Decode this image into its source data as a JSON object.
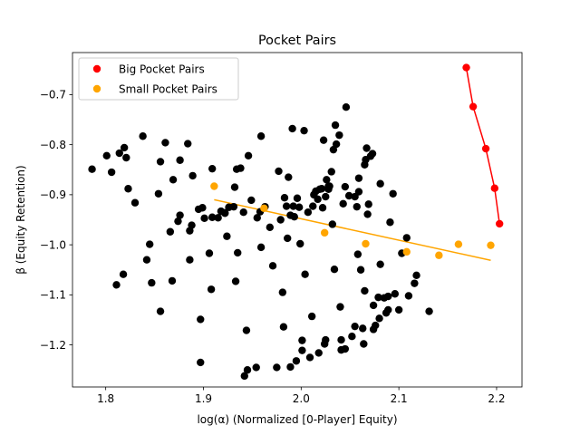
{
  "chart_data": {
    "type": "scatter",
    "title": "Pocket Pairs",
    "xlabel": "log(α) (Normalized [0-Player] Equity)",
    "ylabel": "β (Equity Retention)",
    "xlim": [
      1.766,
      2.226
    ],
    "ylim": [
      -1.284,
      -0.616
    ],
    "xticks": [
      1.8,
      1.9,
      2.0,
      2.1,
      2.2
    ],
    "xtick_labels": [
      "1.8",
      "1.9",
      "2.0",
      "2.1",
      "2.2"
    ],
    "yticks": [
      -1.2,
      -1.1,
      -1.0,
      -0.9,
      -0.8,
      -0.7
    ],
    "ytick_labels": [
      "−1.2",
      "−1.1",
      "−1.0",
      "−0.9",
      "−0.8",
      "−0.7"
    ],
    "grid": false,
    "legend_position": "top-left",
    "series": [
      {
        "name": "",
        "color": "#000000",
        "marker": "circle",
        "points": [
          [
            1.786,
            -0.849
          ],
          [
            1.801,
            -0.822
          ],
          [
            1.806,
            -0.855
          ],
          [
            1.811,
            -1.08
          ],
          [
            1.814,
            -0.817
          ],
          [
            1.818,
            -1.059
          ],
          [
            1.819,
            -0.806
          ],
          [
            1.821,
            -0.826
          ],
          [
            1.823,
            -0.888
          ],
          [
            1.83,
            -0.916
          ],
          [
            1.838,
            -0.783
          ],
          [
            1.842,
            -1.03
          ],
          [
            1.845,
            -0.999
          ],
          [
            1.847,
            -1.076
          ],
          [
            1.854,
            -0.898
          ],
          [
            1.856,
            -0.834
          ],
          [
            1.856,
            -1.133
          ],
          [
            1.861,
            -0.796
          ],
          [
            1.866,
            -0.974
          ],
          [
            1.868,
            -1.072
          ],
          [
            1.869,
            -0.87
          ],
          [
            1.874,
            -0.953
          ],
          [
            1.876,
            -0.941
          ],
          [
            1.876,
            -0.831
          ],
          [
            1.884,
            -0.798
          ],
          [
            1.886,
            -0.972
          ],
          [
            1.886,
            -1.03
          ],
          [
            1.888,
            -0.961
          ],
          [
            1.889,
            -0.862
          ],
          [
            1.895,
            -0.929
          ],
          [
            1.897,
            -1.149
          ],
          [
            1.897,
            -1.235
          ],
          [
            1.899,
            -0.926
          ],
          [
            1.901,
            -0.947
          ],
          [
            1.906,
            -1.017
          ],
          [
            1.908,
            -1.089
          ],
          [
            1.909,
            -0.945
          ],
          [
            1.909,
            -0.848
          ],
          [
            1.915,
            -0.946
          ],
          [
            1.918,
            -0.933
          ],
          [
            1.922,
            -0.937
          ],
          [
            1.922,
            -0.936
          ],
          [
            1.924,
            -0.983
          ],
          [
            1.926,
            -0.925
          ],
          [
            1.931,
            -0.924
          ],
          [
            1.932,
            -0.885
          ],
          [
            1.933,
            -1.073
          ],
          [
            1.934,
            -0.849
          ],
          [
            1.935,
            -1.016
          ],
          [
            1.938,
            -0.847
          ],
          [
            1.941,
            -0.935
          ],
          [
            1.942,
            -1.262
          ],
          [
            1.944,
            -1.171
          ],
          [
            1.945,
            -1.25
          ],
          [
            1.946,
            -0.822
          ],
          [
            1.949,
            -0.911
          ],
          [
            1.954,
            -1.245
          ],
          [
            1.955,
            -0.946
          ],
          [
            1.958,
            -0.934
          ],
          [
            1.959,
            -1.005
          ],
          [
            1.959,
            -0.783
          ],
          [
            1.963,
            -0.924
          ],
          [
            1.968,
            -0.965
          ],
          [
            1.971,
            -1.042
          ],
          [
            1.975,
            -1.245
          ],
          [
            1.977,
            -0.853
          ],
          [
            1.979,
            -0.95
          ],
          [
            1.981,
            -1.095
          ],
          [
            1.982,
            -1.164
          ],
          [
            1.983,
            -0.906
          ],
          [
            1.985,
            -0.923
          ],
          [
            1.986,
            -0.987
          ],
          [
            1.987,
            -0.865
          ],
          [
            1.989,
            -0.941
          ],
          [
            1.989,
            -1.244
          ],
          [
            1.991,
            -0.768
          ],
          [
            1.992,
            -0.923
          ],
          [
            1.993,
            -0.944
          ],
          [
            1.995,
            -1.232
          ],
          [
            1.996,
            -0.907
          ],
          [
            1.998,
            -0.925
          ],
          [
            1.999,
            -0.998
          ],
          [
            2.001,
            -1.191
          ],
          [
            2.001,
            -1.211
          ],
          [
            2.003,
            -0.772
          ],
          [
            2.004,
            -1.059
          ],
          [
            2.007,
            -0.935
          ],
          [
            2.009,
            -1.225
          ],
          [
            2.011,
            -1.143
          ],
          [
            2.012,
            -0.923
          ],
          [
            2.013,
            -0.9
          ],
          [
            2.015,
            -0.893
          ],
          [
            2.017,
            -0.909
          ],
          [
            2.018,
            -1.216
          ],
          [
            2.019,
            -0.889
          ],
          [
            2.021,
            -0.888
          ],
          [
            2.022,
            -0.926
          ],
          [
            2.023,
            -0.791
          ],
          [
            2.024,
            -1.198
          ],
          [
            2.025,
            -0.904
          ],
          [
            2.025,
            -1.19
          ],
          [
            2.026,
            -0.87
          ],
          [
            2.028,
            -0.883
          ],
          [
            2.028,
            -0.889
          ],
          [
            2.029,
            -0.883
          ],
          [
            2.031,
            -0.854
          ],
          [
            2.032,
            -0.959
          ],
          [
            2.033,
            -0.81
          ],
          [
            2.034,
            -1.049
          ],
          [
            2.035,
            -0.761
          ],
          [
            2.036,
            -0.799
          ],
          [
            2.039,
            -0.781
          ],
          [
            2.04,
            -1.124
          ],
          [
            2.041,
            -1.21
          ],
          [
            2.041,
            -1.19
          ],
          [
            2.043,
            -0.918
          ],
          [
            2.045,
            -1.208
          ],
          [
            2.045,
            -0.884
          ],
          [
            2.046,
            -0.725
          ],
          [
            2.049,
            -0.902
          ],
          [
            2.052,
            -1.183
          ],
          [
            2.055,
            -1.163
          ],
          [
            2.055,
            -0.904
          ],
          [
            2.057,
            -0.924
          ],
          [
            2.058,
            -1.019
          ],
          [
            2.059,
            -0.894
          ],
          [
            2.059,
            -0.867
          ],
          [
            2.061,
            -1.05
          ],
          [
            2.063,
            -1.167
          ],
          [
            2.064,
            -1.198
          ],
          [
            2.065,
            -0.84
          ],
          [
            2.065,
            -1.092
          ],
          [
            2.066,
            -0.83
          ],
          [
            2.067,
            -0.807
          ],
          [
            2.068,
            -0.939
          ],
          [
            2.069,
            -0.919
          ],
          [
            2.071,
            -0.823
          ],
          [
            2.073,
            -0.818
          ],
          [
            2.074,
            -1.169
          ],
          [
            2.074,
            -1.121
          ],
          [
            2.076,
            -1.161
          ],
          [
            2.079,
            -1.105
          ],
          [
            2.08,
            -1.147
          ],
          [
            2.081,
            -1.039
          ],
          [
            2.081,
            -0.878
          ],
          [
            2.085,
            -1.106
          ],
          [
            2.087,
            -1.136
          ],
          [
            2.089,
            -1.13
          ],
          [
            2.089,
            -1.103
          ],
          [
            2.091,
            -0.955
          ],
          [
            2.094,
            -0.898
          ],
          [
            2.096,
            -1.098
          ],
          [
            2.1,
            -1.13
          ],
          [
            2.103,
            -1.017
          ],
          [
            2.108,
            -0.986
          ],
          [
            2.11,
            -1.102
          ],
          [
            2.116,
            -1.077
          ],
          [
            2.118,
            -1.061
          ],
          [
            2.131,
            -1.133
          ]
        ]
      },
      {
        "name": "Big Pocket Pairs",
        "color": "#ff0000",
        "marker": "circle",
        "line_color": "#ff0000",
        "points": [
          [
            2.169,
            -0.646
          ],
          [
            2.176,
            -0.724
          ],
          [
            2.189,
            -0.808
          ],
          [
            2.198,
            -0.887
          ],
          [
            2.203,
            -0.958
          ]
        ],
        "fit_line": [
          [
            2.169,
            -0.646
          ],
          [
            2.176,
            -0.724
          ],
          [
            2.189,
            -0.808
          ],
          [
            2.198,
            -0.887
          ],
          [
            2.203,
            -0.958
          ]
        ]
      },
      {
        "name": "Small Pocket Pairs",
        "color": "#ffa500",
        "marker": "circle",
        "line_color": "#ffa500",
        "points": [
          [
            1.911,
            -0.883
          ],
          [
            1.962,
            -0.927
          ],
          [
            2.024,
            -0.976
          ],
          [
            2.066,
            -0.998
          ],
          [
            2.108,
            -1.014
          ],
          [
            2.141,
            -1.021
          ],
          [
            2.161,
            -0.999
          ],
          [
            2.194,
            -1.001
          ]
        ],
        "fit_line": [
          [
            1.911,
            -0.91
          ],
          [
            2.194,
            -1.031
          ]
        ]
      }
    ]
  }
}
